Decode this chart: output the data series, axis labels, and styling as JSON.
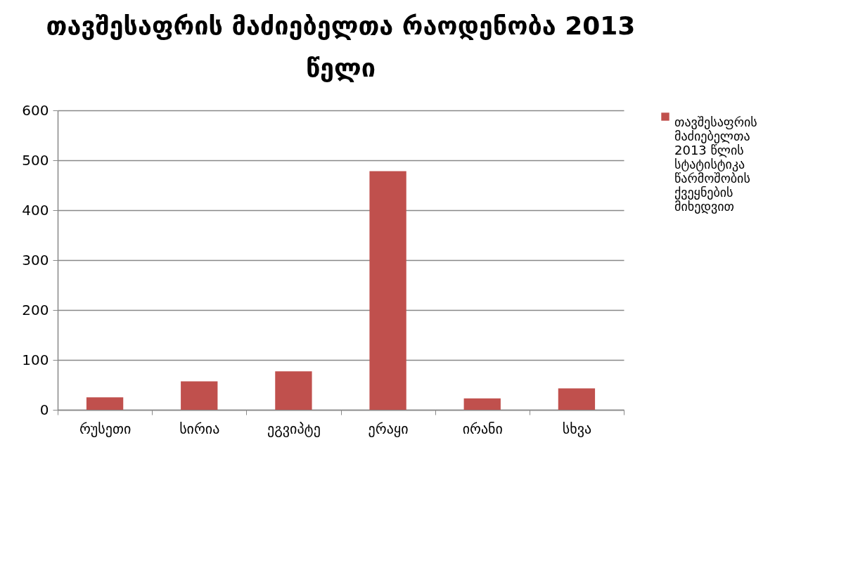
{
  "chart_data": {
    "type": "bar",
    "title": "თავშესაფრის მაძიებელთა რაოდენობა 2013 წელი",
    "categories": [
      "რუსეთი",
      "სირია",
      "ეგვიპტე",
      "ერაყი",
      "ირანი",
      "სხვა"
    ],
    "series": [
      {
        "name": "თავშესაფრის მაძიებელთა 2013 წლის სტატისტიკა წარმოშობის ქვეყნების მიხედვით",
        "color": "#c0504d",
        "values": [
          25,
          57,
          77,
          478,
          23,
          43
        ]
      }
    ],
    "ylim": [
      0,
      600
    ],
    "yticks": [
      0,
      100,
      200,
      300,
      400,
      500,
      600
    ],
    "grid": "y",
    "legend": "right"
  }
}
